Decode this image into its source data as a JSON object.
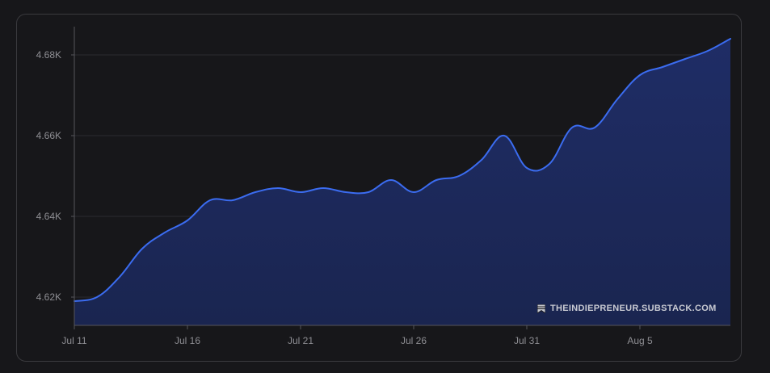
{
  "colors": {
    "background": "#17171a",
    "line": "#3b6cf0",
    "area_top": "#1f2d66",
    "area_bottom": "#1a2550",
    "grid": "#2b2b30",
    "axis": "#55555a",
    "tick_text": "#8e8e93"
  },
  "watermark": {
    "icon": "bookmark-icon",
    "text": "THEINDIEPRENEUR.SUBSTACK.COM"
  },
  "chart_data": {
    "type": "area",
    "title": "",
    "xlabel": "",
    "ylabel": "",
    "grid": true,
    "legend": "none",
    "ylim": [
      4613,
      4687
    ],
    "y_ticks": [
      4620,
      4640,
      4660,
      4680
    ],
    "y_tick_labels": [
      "4.62K",
      "4.64K",
      "4.66K",
      "4.68K"
    ],
    "x_tick_labels": [
      "Jul 11",
      "Jul 16",
      "Jul 21",
      "Jul 26",
      "Jul 31",
      "Aug 5"
    ],
    "x_tick_dates": [
      "2024-07-11",
      "2024-07-16",
      "2024-07-21",
      "2024-07-26",
      "2024-07-31",
      "2024-08-05"
    ],
    "series": [
      {
        "x": [
          "2024-07-11",
          "2024-07-12",
          "2024-07-13",
          "2024-07-14",
          "2024-07-15",
          "2024-07-16",
          "2024-07-17",
          "2024-07-18",
          "2024-07-19",
          "2024-07-20",
          "2024-07-21",
          "2024-07-22",
          "2024-07-23",
          "2024-07-24",
          "2024-07-25",
          "2024-07-26",
          "2024-07-27",
          "2024-07-28",
          "2024-07-29",
          "2024-07-30",
          "2024-07-31",
          "2024-08-01",
          "2024-08-02",
          "2024-08-03",
          "2024-08-04",
          "2024-08-05",
          "2024-08-06",
          "2024-08-07",
          "2024-08-08",
          "2024-08-09"
        ],
        "values": [
          4619,
          4620,
          4625,
          4632,
          4636,
          4639,
          4644,
          4644,
          4646,
          4647,
          4646,
          4647,
          4646,
          4646,
          4649,
          4646,
          4649,
          4650,
          4654,
          4660,
          4652,
          4653,
          4662,
          4662,
          4669,
          4675,
          4677,
          4679,
          4681,
          4684
        ]
      }
    ]
  }
}
